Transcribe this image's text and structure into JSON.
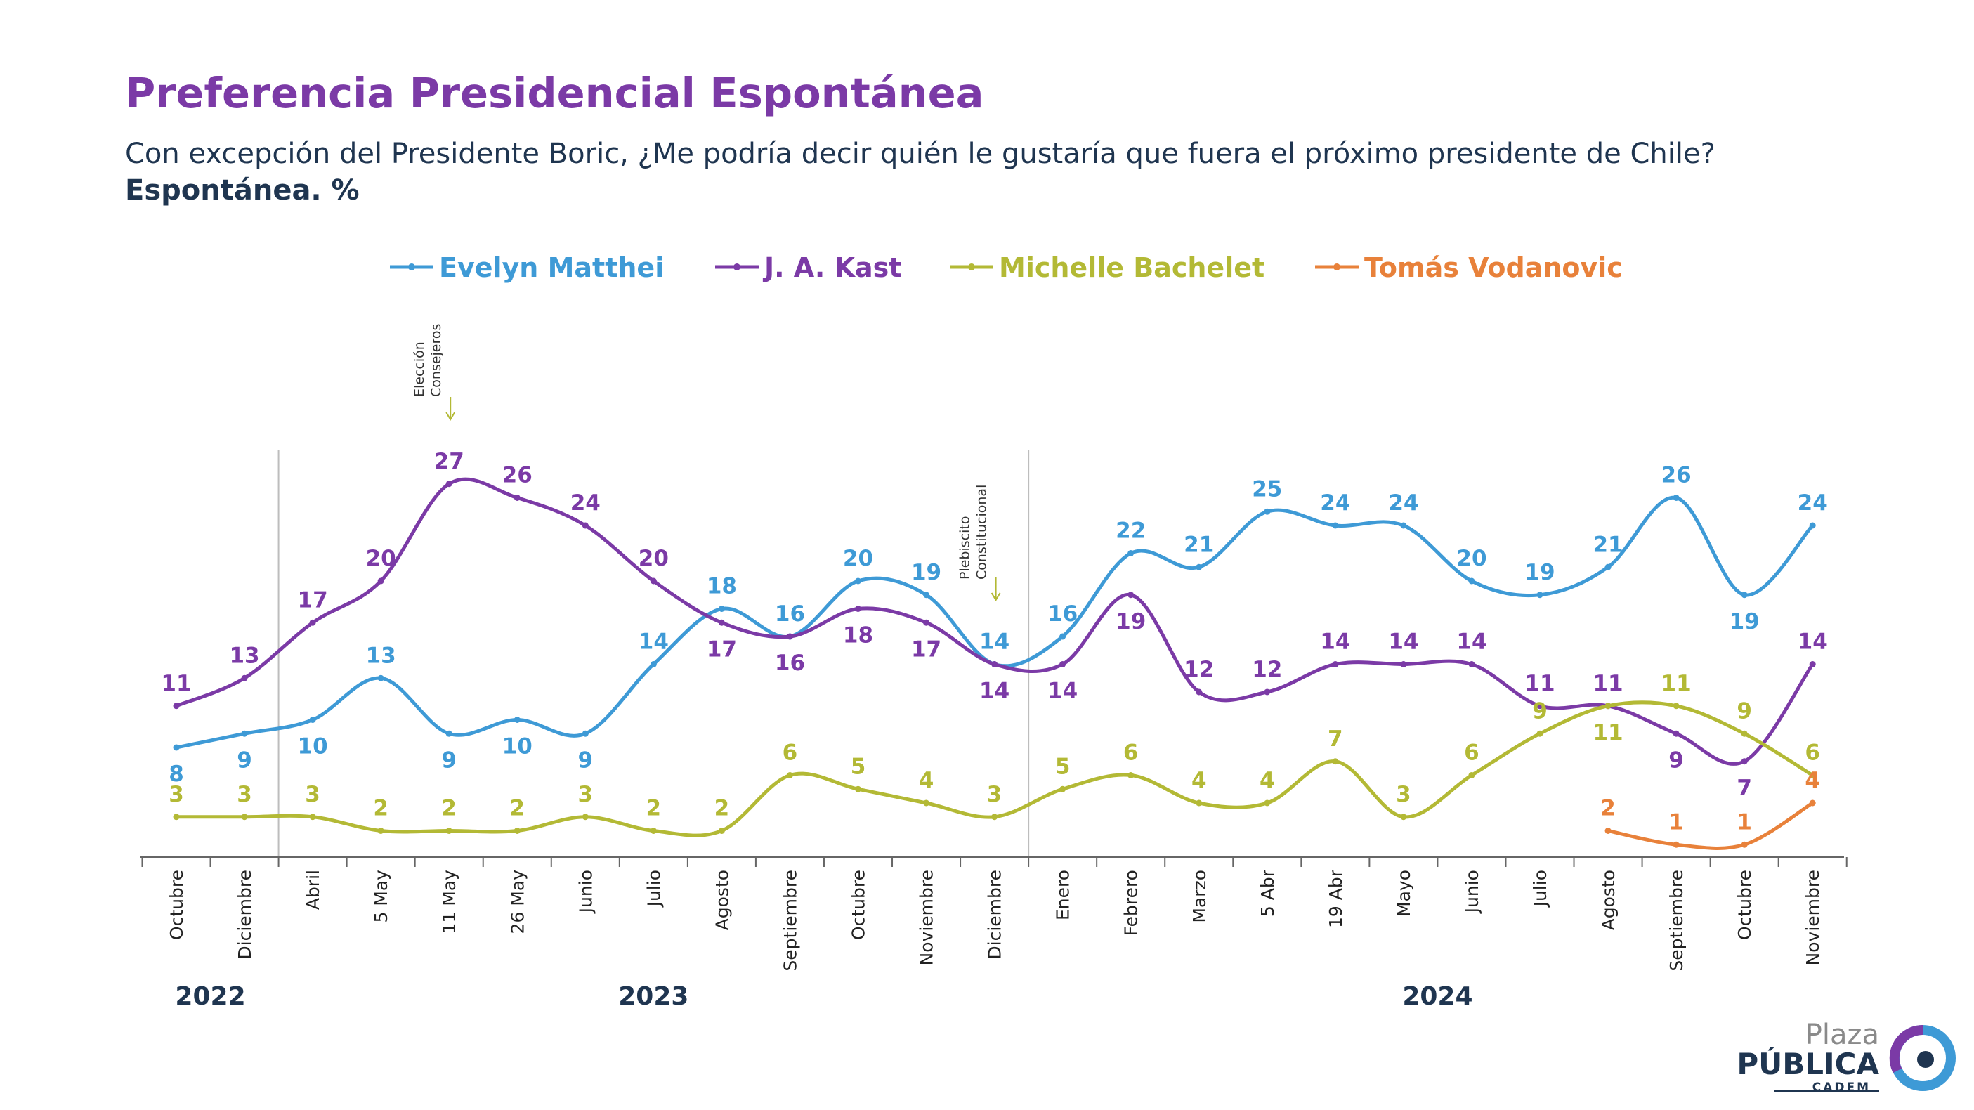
{
  "header": {
    "title": "Preferencia Presidencial Espontánea",
    "subtitle": "Con excepción del Presidente Boric, ¿Me podría decir quién le gustaría que fuera el próximo presidente de Chile?",
    "unit": "Espontánea. %"
  },
  "logo": {
    "line1": "Plaza",
    "line2": "PÚBLICA",
    "line3": "CADEM"
  },
  "chart_data": {
    "type": "line",
    "title": "Preferencia Presidencial Espontánea",
    "xlabel": "",
    "ylabel": "",
    "ylim": [
      0,
      30
    ],
    "grid": false,
    "legend_position": "top",
    "categories": [
      "Octubre",
      "Diciembre",
      "Abril",
      "5 May",
      "11 May",
      "26 May",
      "Junio",
      "Julio",
      "Agosto",
      "Septiembre",
      "Octubre",
      "Noviembre",
      "Diciembre",
      "Enero",
      "Febrero",
      "Marzo",
      "5 Abr",
      "19 Abr",
      "Mayo",
      "Junio",
      "Julio",
      "Agosto",
      "Septiembre",
      "Octubre",
      "Noviembre"
    ],
    "years": [
      {
        "label": "2022",
        "from": 0,
        "to": 1
      },
      {
        "label": "2023",
        "from": 2,
        "to": 12
      },
      {
        "label": "2024",
        "from": 13,
        "to": 24
      }
    ],
    "separators_after": [
      1,
      12
    ],
    "annotations": [
      {
        "index": 4,
        "lines": [
          "Elección",
          "Consejeros"
        ]
      },
      {
        "index": 12,
        "lines": [
          "Plebiscito",
          "Constitucional"
        ]
      }
    ],
    "series": [
      {
        "name": "Evelyn Matthei",
        "color": "#3e9ad6",
        "values": [
          8,
          9,
          10,
          13,
          9,
          10,
          9,
          14,
          18,
          16,
          20,
          19,
          14,
          16,
          22,
          21,
          25,
          24,
          24,
          20,
          19,
          21,
          26,
          19,
          24
        ]
      },
      {
        "name": "J. A. Kast",
        "color": "#7b3aa6",
        "values": [
          11,
          13,
          17,
          20,
          27,
          26,
          24,
          20,
          17,
          16,
          18,
          17,
          14,
          14,
          19,
          12,
          12,
          14,
          14,
          14,
          11,
          11,
          9,
          7,
          14
        ]
      },
      {
        "name": "Michelle Bachelet",
        "color": "#b3b935",
        "values": [
          3,
          3,
          3,
          2,
          2,
          2,
          3,
          2,
          2,
          6,
          5,
          4,
          3,
          5,
          6,
          4,
          4,
          7,
          3,
          6,
          9,
          11,
          11,
          9,
          6
        ]
      },
      {
        "name": "Tomás Vodanovic",
        "color": "#e8813a",
        "values": [
          null,
          null,
          null,
          null,
          null,
          null,
          null,
          null,
          null,
          null,
          null,
          null,
          null,
          null,
          null,
          null,
          null,
          null,
          null,
          null,
          null,
          2,
          1,
          1,
          4
        ]
      }
    ]
  }
}
